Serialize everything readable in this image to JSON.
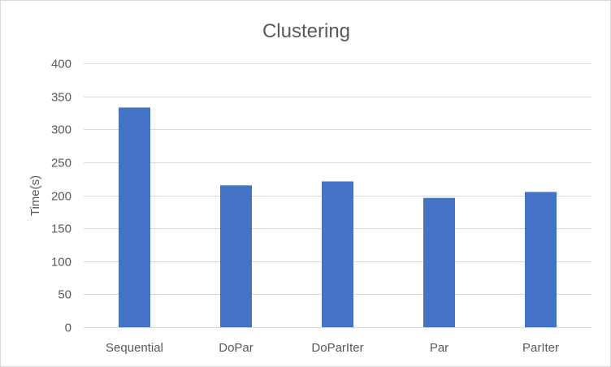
{
  "chart_data": {
    "type": "bar",
    "title": "Clustering",
    "xlabel": "",
    "ylabel": "Time(s)",
    "categories": [
      "Sequential",
      "DoPar",
      "DoParIter",
      "Par",
      "ParIter"
    ],
    "series": [
      {
        "values": [
          333,
          215,
          221,
          196,
          205
        ],
        "color": "#4472c4"
      }
    ],
    "ylim": [
      0,
      400
    ],
    "yticks": [
      0,
      50,
      100,
      150,
      200,
      250,
      300,
      350,
      400
    ],
    "grid": true,
    "legend": "none"
  }
}
